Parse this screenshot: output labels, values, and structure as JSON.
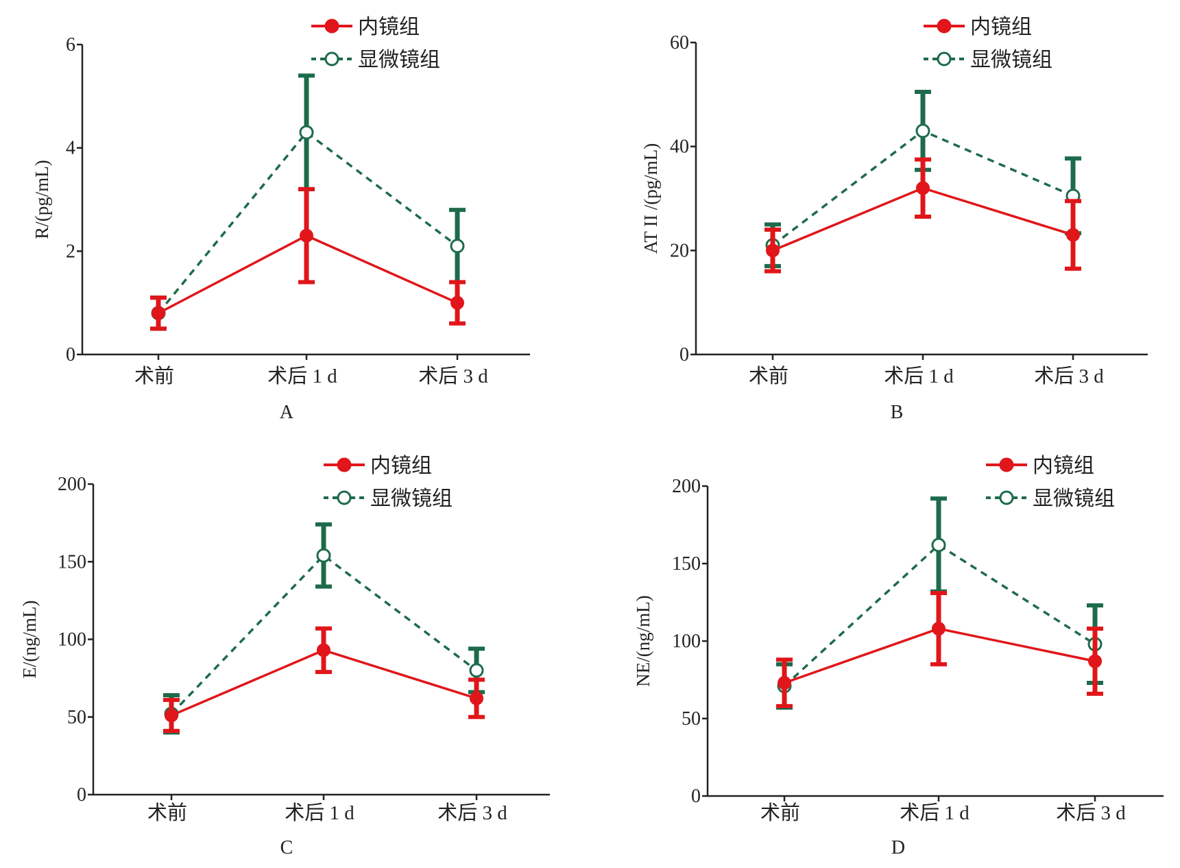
{
  "colors": {
    "series1": "#e0161a",
    "series2": "#1d6b4b",
    "axis": "#222222",
    "background": "#ffffff"
  },
  "legend_labels": [
    "内镜组",
    "显微镜组"
  ],
  "categories": [
    "术前",
    "术后 1 d",
    "术后 3 d"
  ],
  "panels": [
    {
      "letter": "A",
      "ylabel": "R/(pg/mL)",
      "ymax": 6,
      "yticks": [
        "0",
        "2",
        "4",
        "6"
      ]
    },
    {
      "letter": "B",
      "ylabel": "AT II /(pg/mL)",
      "ymax": 60,
      "yticks": [
        "0",
        "20",
        "40",
        "60"
      ]
    },
    {
      "letter": "C",
      "ylabel": "E/(ng/mL)",
      "ymax": 200,
      "yticks": [
        "0",
        "50",
        "100",
        "150",
        "200"
      ]
    },
    {
      "letter": "D",
      "ylabel": "NE/(ng/mL)",
      "ymax": 200,
      "yticks": [
        "0",
        "50",
        "100",
        "150",
        "200"
      ]
    }
  ],
  "chart_data": [
    {
      "type": "line",
      "title": "A",
      "xlabel": "",
      "ylabel": "R/(pg/mL)",
      "categories": [
        "术前",
        "术后 1 d",
        "术后 3 d"
      ],
      "ylim": [
        0,
        6
      ],
      "legend_position": "top-right",
      "error_bars": true,
      "series": [
        {
          "name": "内镜组",
          "values": [
            0.8,
            2.3,
            1.0
          ],
          "errors": [
            0.3,
            0.9,
            0.4
          ],
          "line": "solid",
          "marker": "filled-circle"
        },
        {
          "name": "显微镜组",
          "values": [
            0.8,
            4.3,
            2.1
          ],
          "errors": [
            0.3,
            1.1,
            0.7
          ],
          "line": "dashed",
          "marker": "open-circle"
        }
      ]
    },
    {
      "type": "line",
      "title": "B",
      "xlabel": "",
      "ylabel": "AT II /(pg/mL)",
      "categories": [
        "术前",
        "术后 1 d",
        "术后 3 d"
      ],
      "ylim": [
        0,
        60
      ],
      "legend_position": "top-right",
      "error_bars": true,
      "series": [
        {
          "name": "内镜组",
          "values": [
            20,
            32,
            23
          ],
          "errors": [
            4,
            5.5,
            6.5
          ],
          "line": "solid",
          "marker": "filled-circle"
        },
        {
          "name": "显微镜组",
          "values": [
            21,
            43,
            30.5
          ],
          "errors": [
            4,
            7.5,
            7.2
          ],
          "line": "dashed",
          "marker": "open-circle"
        }
      ]
    },
    {
      "type": "line",
      "title": "C",
      "xlabel": "",
      "ylabel": "E/(ng/mL)",
      "categories": [
        "术前",
        "术后 1 d",
        "术后 3 d"
      ],
      "ylim": [
        0,
        200
      ],
      "legend_position": "top-right",
      "error_bars": true,
      "series": [
        {
          "name": "内镜组",
          "values": [
            51,
            93,
            62
          ],
          "errors": [
            10,
            14,
            12
          ],
          "line": "solid",
          "marker": "filled-circle"
        },
        {
          "name": "显微镜组",
          "values": [
            52,
            154,
            80
          ],
          "errors": [
            12,
            20,
            14
          ],
          "line": "dashed",
          "marker": "open-circle"
        }
      ]
    },
    {
      "type": "line",
      "title": "D",
      "xlabel": "",
      "ylabel": "NE/(ng/mL)",
      "categories": [
        "术前",
        "术后 1 d",
        "术后 3 d"
      ],
      "ylim": [
        0,
        200
      ],
      "legend_position": "top-right",
      "error_bars": true,
      "series": [
        {
          "name": "内镜组",
          "values": [
            73,
            108,
            87
          ],
          "errors": [
            15,
            23,
            21
          ],
          "line": "solid",
          "marker": "filled-circle"
        },
        {
          "name": "显微镜组",
          "values": [
            71,
            162,
            98
          ],
          "errors": [
            14,
            30,
            25
          ],
          "line": "dashed",
          "marker": "open-circle"
        }
      ]
    }
  ]
}
